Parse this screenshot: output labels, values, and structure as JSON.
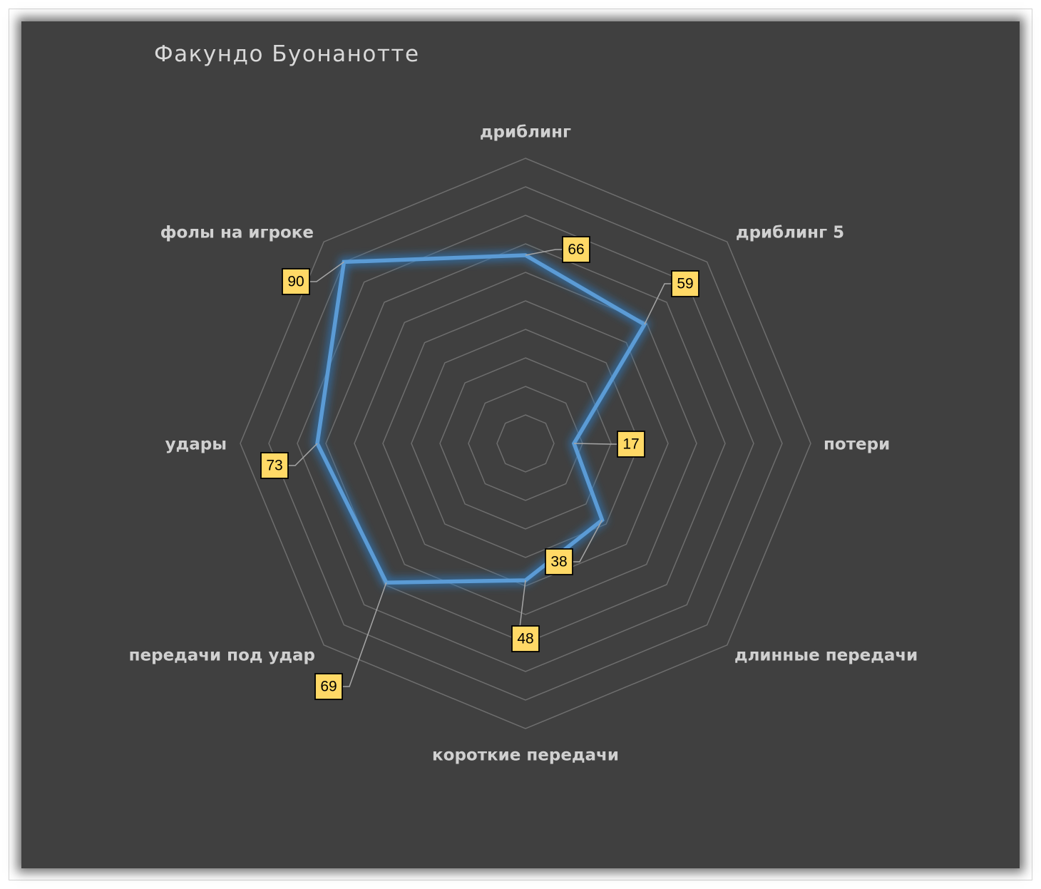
{
  "chart_data": {
    "type": "radar",
    "title": "Факундо Буонанотте",
    "categories": [
      "дриблинг",
      "дриблинг 5",
      "потери",
      "длинные передачи",
      "короткие передачи",
      "передачи под удар",
      "удары",
      "фолы на игроке"
    ],
    "series": [
      {
        "values": [
          66,
          59,
          17,
          38,
          48,
          69,
          73,
          90
        ]
      }
    ],
    "rlim": [
      0,
      100
    ],
    "grid_rings": 10,
    "legend": "none",
    "colors": {
      "line": "#5b9bd5",
      "glow": "#2e75b6",
      "grid": "#6e6e6e",
      "label_box": "#ffd966",
      "background": "#404040"
    }
  }
}
